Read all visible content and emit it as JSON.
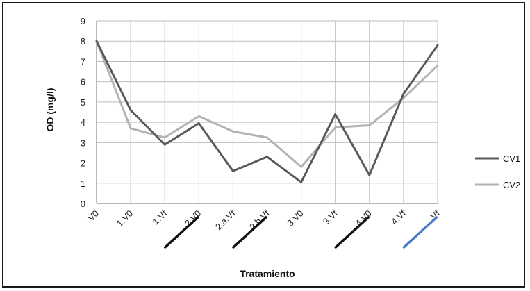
{
  "chart_data": {
    "type": "line",
    "title": "",
    "xlabel": "Tratamiento",
    "ylabel": "OD (mg/l)",
    "categories": [
      "V0",
      "1.V0",
      "1.Vf",
      "2.V0",
      "2.a.Vf",
      "2.b.Vf",
      "3.V0",
      "3.Vf",
      "4.V0",
      "4.Vf",
      "Vf"
    ],
    "ylim": [
      0,
      9
    ],
    "yticks": [
      "0",
      "1",
      "2",
      "3",
      "4",
      "5",
      "6",
      "7",
      "8",
      "9"
    ],
    "grid": true,
    "legend": "right",
    "series": [
      {
        "name": "CV1",
        "color": "#595959",
        "values": [
          8.0,
          4.6,
          2.9,
          3.95,
          1.6,
          2.3,
          1.05,
          4.4,
          1.4,
          5.4,
          7.8
        ]
      },
      {
        "name": "CV2",
        "color": "#b3b3b3",
        "values": [
          8.0,
          3.7,
          3.25,
          4.3,
          3.55,
          3.25,
          1.8,
          3.75,
          3.85,
          5.2,
          6.8
        ]
      }
    ],
    "annotations": [
      {
        "type": "slash-mark",
        "between": [
          "1.Vf",
          "2.V0"
        ],
        "color": "#111111"
      },
      {
        "type": "slash-mark",
        "between": [
          "2.a.Vf",
          "2.b.Vf"
        ],
        "color": "#111111"
      },
      {
        "type": "slash-mark",
        "between": [
          "3.Vf",
          "4.V0"
        ],
        "color": "#111111"
      },
      {
        "type": "slash-mark",
        "between": [
          "4.Vf",
          "Vf"
        ],
        "color": "#4a7cc9"
      }
    ]
  }
}
